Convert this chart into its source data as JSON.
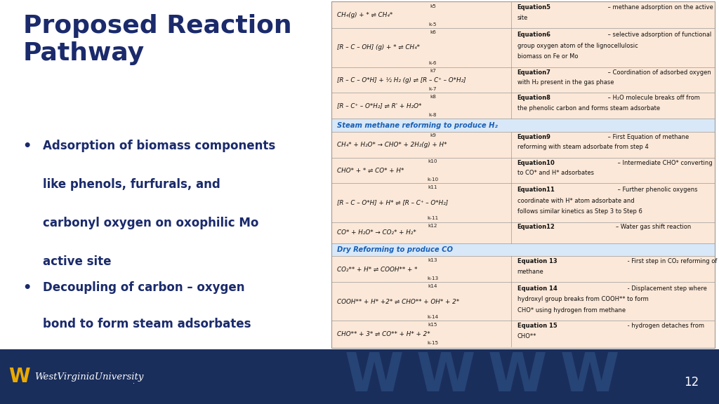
{
  "title_color": "#1a2a6b",
  "bullet_color": "#1a2a6b",
  "table_bg": "#fce8d8",
  "section_color": "#1a5fb4",
  "footer_bg": "#1a2e5c",
  "page_number": "12",
  "col_split": 0.47,
  "rows": [
    {
      "type": "eq",
      "k_above": "k5",
      "k_below": "k-5",
      "eq_lines": [
        "CH₄(g) + * ⇌ CH₄*"
      ],
      "desc": [
        [
          "Equation5",
          " – methane adsorption on the active"
        ],
        [
          "site"
        ]
      ]
    },
    {
      "type": "eq",
      "k_above": "k6",
      "k_below": "k-6",
      "eq_lines": [
        "[R – C – OH] (g) + * ⇌ CH₄*"
      ],
      "desc": [
        [
          "Equation6",
          " – selective adsorption of functional"
        ],
        [
          "group oxygen atom of the lignocellulosic"
        ],
        [
          "biomass on Fe or Mo"
        ]
      ]
    },
    {
      "type": "eq",
      "k_above": "k7",
      "k_below": "k-7",
      "eq_lines": [
        "[R – C – O*H] + ½ H₂ (g) ⇌ [R – C⁺ – O*H₂]"
      ],
      "desc": [
        [
          "Equation7",
          " – Coordination of adsorbed oxygen"
        ],
        [
          "with H₂ present in the gas phase"
        ]
      ]
    },
    {
      "type": "eq",
      "k_above": "k8",
      "k_below": "k-8",
      "eq_lines": [
        "[R – C⁺ – O*H₂] ⇌ R' + H₂O*"
      ],
      "desc": [
        [
          "Equation8",
          " – H₂O molecule breaks off from"
        ],
        [
          "the phenolic carbon and forms steam adsorbate"
        ]
      ]
    },
    {
      "type": "section",
      "text": "Steam methane reforming to produce H₂"
    },
    {
      "type": "eq",
      "k_above": "k9",
      "k_below": "",
      "eq_lines": [
        "CH₄* + H₂O* → CHO* + 2H₂(g) + H*"
      ],
      "desc": [
        [
          "Equation9",
          " – First Equation of methane"
        ],
        [
          "reforming with steam adsorbate from step 4"
        ]
      ]
    },
    {
      "type": "eq",
      "k_above": "k10",
      "k_below": "k-10",
      "eq_lines": [
        "CHO* + * ⇌ CO* + H*"
      ],
      "desc": [
        [
          "Equation10",
          " – Intermediate CHO* converting"
        ],
        [
          "to CO* and H* adsorbates"
        ]
      ]
    },
    {
      "type": "eq",
      "k_above": "k11",
      "k_below": "k-11",
      "eq_lines": [
        "[R – C – O*H] + H* ⇌ [R – C⁺ – O*H₂]"
      ],
      "desc": [
        [
          "Equation11",
          " – Further phenolic oxygens"
        ],
        [
          "coordinate with H* atom adsorbate and"
        ],
        [
          "follows similar kinetics as Step 3 to Step 6"
        ]
      ]
    },
    {
      "type": "eq",
      "k_above": "k12",
      "k_below": "",
      "eq_lines": [
        "CO* + H₂O* → CO₂* + H₂*"
      ],
      "desc": [
        [
          "Equation12",
          "– Water gas shift reaction"
        ]
      ]
    },
    {
      "type": "section",
      "text": "Dry Reforming to produce CO"
    },
    {
      "type": "eq",
      "k_above": "k13",
      "k_below": "k-13",
      "eq_lines": [
        "CO₂** + H* ⇌ COOH** + *"
      ],
      "desc": [
        [
          "Equation 13",
          " - First step in CO₂ reforming of"
        ],
        [
          "methane"
        ]
      ]
    },
    {
      "type": "eq",
      "k_above": "k14",
      "k_below": "k-14",
      "eq_lines": [
        "COOH** + H* +2* ⇌ CHO** + OH* + 2*"
      ],
      "desc": [
        [
          "Equation 14",
          " - Displacement step where"
        ],
        [
          "hydroxyl group breaks from COOH** to form"
        ],
        [
          "CHO* using hydrogen from methane"
        ]
      ]
    },
    {
      "type": "eq",
      "k_above": "k15",
      "k_below": "k-15",
      "eq_lines": [
        "CHO** + 3* ⇌ CO** + H* + 2*"
      ],
      "desc": [
        [
          "Equation 15",
          " - hydrogen detaches from"
        ],
        [
          "CHO**"
        ]
      ]
    }
  ]
}
